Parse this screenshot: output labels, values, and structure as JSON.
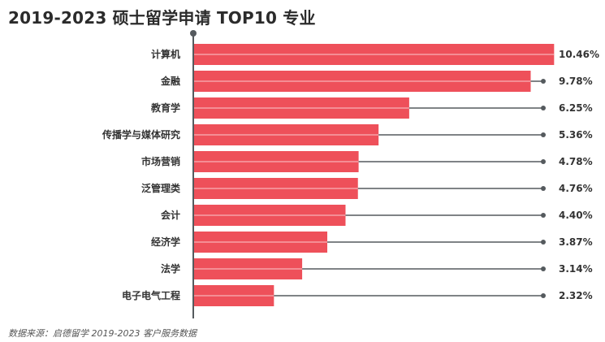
{
  "chart_data": {
    "type": "bar",
    "orientation": "horizontal",
    "title": "2019-2023 硕士留学申请 TOP10 专业",
    "categories": [
      "计算机",
      "金融",
      "教育学",
      "传播学与媒体研究",
      "市场营销",
      "泛管理类",
      "会计",
      "经济学",
      "法学",
      "电子电气工程"
    ],
    "values": [
      10.46,
      9.78,
      6.25,
      5.36,
      4.78,
      4.76,
      4.4,
      3.87,
      3.14,
      2.32
    ],
    "value_labels": [
      "10.46%",
      "9.78%",
      "6.25%",
      "5.36%",
      "4.78%",
      "4.76%",
      "4.40%",
      "3.87%",
      "3.14%",
      "2.32%"
    ],
    "xlim": [
      0,
      11.75
    ],
    "grid": false,
    "legend": "none",
    "colors": {
      "bar": "#ee505a",
      "bar_highlight": "#f6aab0",
      "leader": "#555a5e",
      "axis": "#555a5e",
      "label": "#333333"
    }
  },
  "source": "数据来源：启德留学 2019-2023 客户服务数据"
}
